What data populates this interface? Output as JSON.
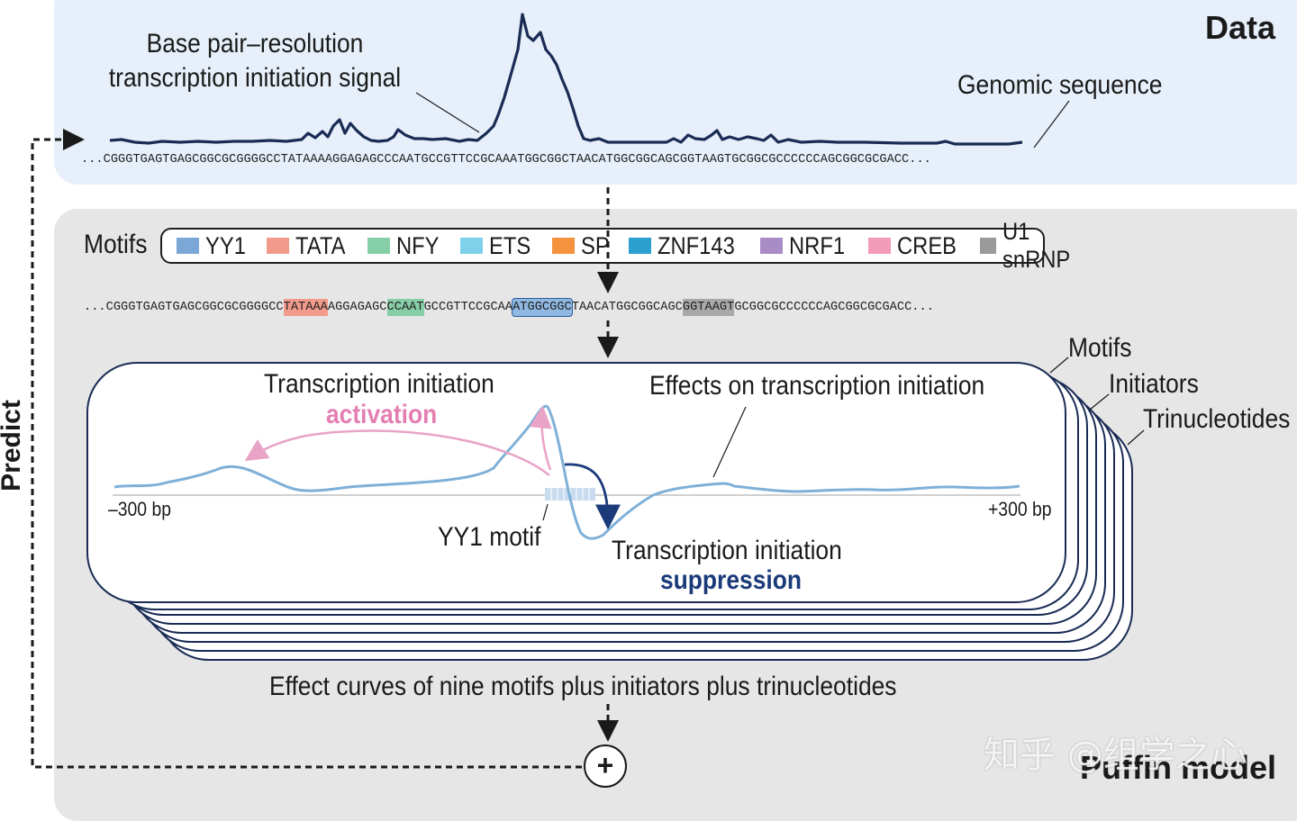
{
  "colors": {
    "data_panel_bg": "#e7f0fa",
    "model_panel_bg": "#e6e6e6",
    "signal_line": "#1a2c55",
    "effect_line": "#7fb0d8",
    "activation": "#e37fb2",
    "suppression": "#1a3a7a"
  },
  "data_panel": {
    "heading": "Data",
    "signal_label_line1": "Base pair–resolution",
    "signal_label_line2": "transcription initiation signal",
    "genomic_label": "Genomic sequence",
    "sequence": "...CGGGTGAGTGAGCGGCGCGGGGCCTATAAAAGGAGAGCCCAATGCCGTTCCGCAAATGGCGGCTAACATGGCGGCAGCGGTAAGTGCGGCGCCCCCCAGCGGCGCGACC..."
  },
  "model_panel": {
    "heading": "Puffin model",
    "motifs_title": "Motifs",
    "legend": [
      {
        "label": "YY1",
        "color": "#7aa7d6"
      },
      {
        "label": "TATA",
        "color": "#f29a8c"
      },
      {
        "label": "NFY",
        "color": "#86cfa6"
      },
      {
        "label": "ETS",
        "color": "#7fd0ea"
      },
      {
        "label": "SP",
        "color": "#f5923e"
      },
      {
        "label": "ZNF143",
        "color": "#2a9fd0"
      },
      {
        "label": "NRF1",
        "color": "#a98bc6"
      },
      {
        "label": "CREB",
        "color": "#f39ab8"
      },
      {
        "label": "U1 snRNP",
        "color": "#9a9a9a"
      }
    ],
    "sequence_segments": [
      {
        "text": "...CGGGTGAGTGAGCGGCGCGGGGCC",
        "highlight": ""
      },
      {
        "text": "TATAAA",
        "highlight": "#f29a8c"
      },
      {
        "text": "AGGAGAGC",
        "highlight": ""
      },
      {
        "text": "CCAAT",
        "highlight": "#86cfa6"
      },
      {
        "text": "GCCGTTCCGCAA",
        "highlight": ""
      },
      {
        "text": "ATGGCGGC",
        "highlight": "#8fb8e3"
      },
      {
        "text": "TAACATGGCGGCAGC",
        "highlight": ""
      },
      {
        "text": "GGTAAGT",
        "highlight": "#a8a8a8"
      },
      {
        "text": "GCGGCGCCCCCCAGCGGCGCGACC...",
        "highlight": ""
      }
    ],
    "stack_labels": [
      "Motifs",
      "Initiators",
      "Trinucleotides"
    ],
    "card": {
      "activation_title": "Transcription initiation",
      "activation_word": "activation",
      "effects_label": "Effects on transcription initiation",
      "axis_left": "–300 bp",
      "axis_right": "+300 bp",
      "motif_label": "YY1 motif",
      "suppression_title": "Transcription initiation",
      "suppression_word": "suppression"
    },
    "caption": "Effect curves of nine motifs plus initiators plus trinucleotides",
    "sum_symbol": "+"
  },
  "side_label": "Predict",
  "watermark": "知乎 @组学之心",
  "icons": {
    "sum_node": "plus-circle-icon",
    "flow_arrows": "dashed-arrow-icon"
  }
}
